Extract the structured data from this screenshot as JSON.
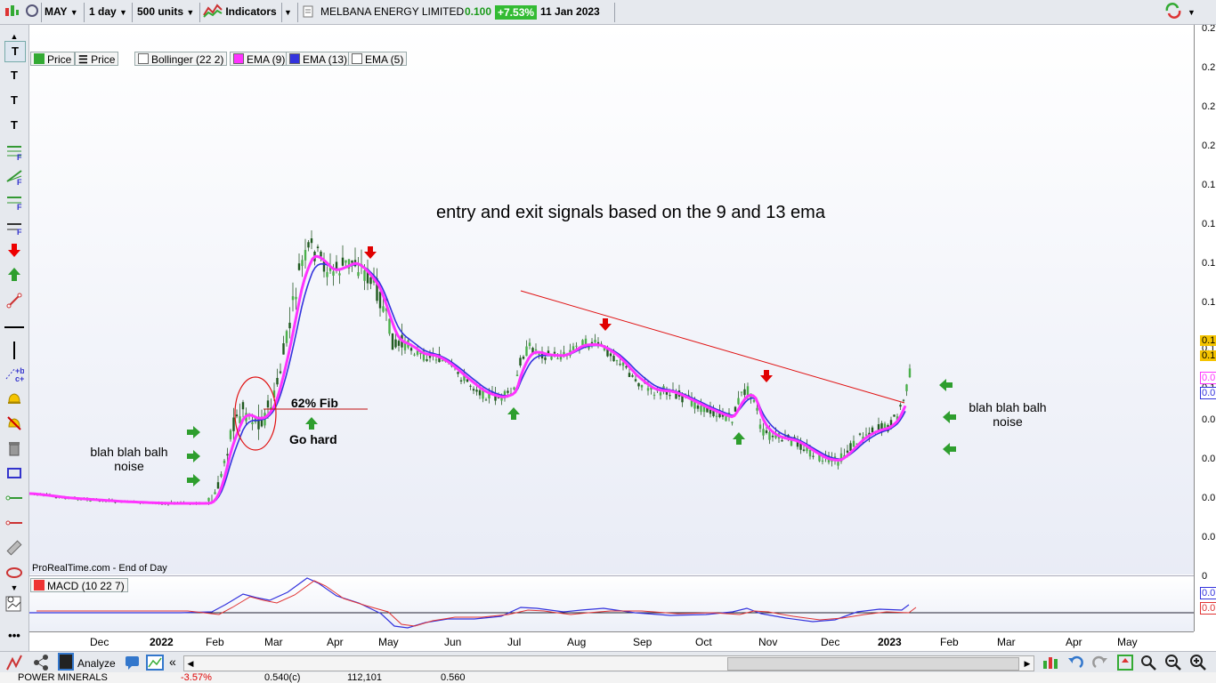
{
  "toolbar": {
    "symbol": "MAY",
    "timeframe": "1 day",
    "units": "500 units",
    "indicators_label": "Indicators",
    "instrument_name": "MELBANA ENERGY LIMITED",
    "last_price": "0.100",
    "change": "+7.53%",
    "date": "11 Jan 2023"
  },
  "legend": {
    "price1": "Price",
    "price2": "Price",
    "bollinger": "Bollinger (22 2)",
    "ema9": "EMA (9)",
    "ema13": "EMA (13)",
    "ema5": "EMA (5)"
  },
  "annotations": {
    "headline": "entry and exit signals based on  the 9 and 13 ema",
    "left_note_line1": "blah blah balh",
    "left_note_line2": "noise",
    "right_note_line1": "blah blah balh",
    "right_note_line2": "noise",
    "fib_label": "62% Fib",
    "go_hard": "Go hard",
    "source": "ProRealTime.com - End of Day"
  },
  "macd": {
    "label": "MACD (10 22 7)"
  },
  "yaxis_labels": [
    "0.2",
    "0.2",
    "0.2",
    "0.2",
    "0.1",
    "0.1",
    "0.1",
    "0.1",
    "0.1",
    "0.1",
    "0.0",
    "0.0",
    "0.0",
    "0.0",
    "0"
  ],
  "yaxis_tags": [
    "0.1",
    "0.1",
    "0.0",
    "0.0"
  ],
  "macd_axis_labels": [
    "0.0",
    "0.0"
  ],
  "xaxis_labels": [
    "Dec",
    "2022",
    "Feb",
    "Mar",
    "Apr",
    "May",
    "Jun",
    "Jul",
    "Aug",
    "Sep",
    "Oct",
    "Nov",
    "Dec",
    "2023",
    "Feb",
    "Mar",
    "Apr",
    "May"
  ],
  "bottombar": {
    "analyze": "Analyze"
  },
  "ticker": {
    "name": "POWER MINERALS",
    "change": "-3.57%",
    "price": "0.540(c)",
    "volume": "112,101",
    "other": "0.560"
  },
  "colors": {
    "ema9": "#ff33ff",
    "ema13": "#3333dd",
    "candle_up": "#3aa03a",
    "signal_green": "#2e9e2e",
    "signal_red": "#e00000",
    "change_badge": "#33bb33"
  }
}
